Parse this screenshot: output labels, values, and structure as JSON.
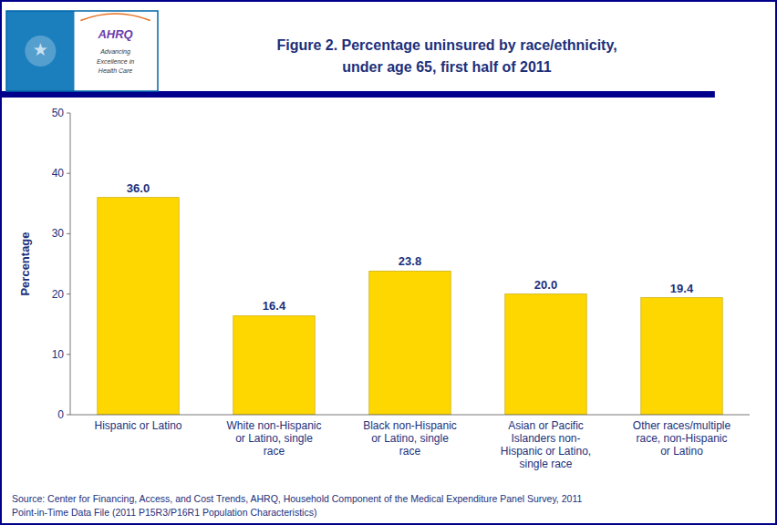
{
  "chart_data": {
    "type": "bar",
    "title": "Figure 2. Percentage uninsured by race/ethnicity,\nunder age 65, first half of 2011",
    "categories": [
      "Hispanic or Latino",
      "White non-Hispanic\nor Latino, single\nrace",
      "Black non-Hispanic\nor Latino, single\nrace",
      "Asian or Pacific\nIslanders non-\nHispanic or Latino,\nsingle race",
      "Other races/multiple\nrace, non-Hispanic\nor Latino"
    ],
    "values": [
      36.0,
      16.4,
      23.8,
      20.0,
      19.4
    ],
    "value_labels": [
      "36.0",
      "16.4",
      "23.8",
      "20.0",
      "19.4"
    ],
    "data_labels": true,
    "color": "#FFD700",
    "y_label": "Percentage",
    "ylim": [
      0,
      50
    ],
    "yticks": [
      0,
      10,
      20,
      30,
      40,
      50
    ],
    "grid": false,
    "annotations": [
      "★",
      "AHRQ",
      "Advancing",
      "Excellence in",
      "Health Care",
      "Source: Center for Financing, Access, and Cost Trends, AHRQ, Household Component of the Medical Expenditure Panel Survey,  2011\nPoint-in-Time Data File (2011 P15R3/P16R1 Population Characteristics)"
    ]
  }
}
